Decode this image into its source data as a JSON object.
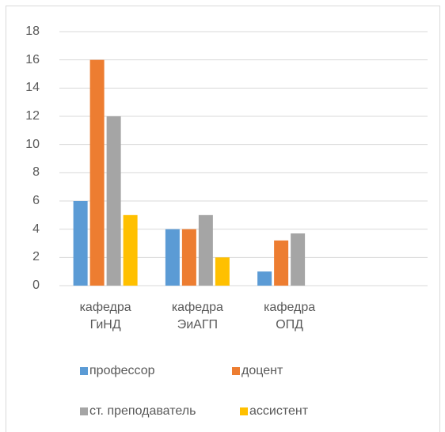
{
  "chart_data": {
    "type": "bar",
    "categories": [
      "кафедра ГиНД",
      "кафедра ЭиАГП",
      "кафедра ОПД",
      null
    ],
    "series": [
      {
        "name": "профессор",
        "color": "#5b9bd5",
        "values": [
          6,
          4,
          1,
          null
        ]
      },
      {
        "name": "доцент",
        "color": "#ed7d31",
        "values": [
          16,
          4,
          3.2,
          null
        ]
      },
      {
        "name": "ст. преподаватель",
        "color": "#a5a5a5",
        "values": [
          12,
          5,
          3.7,
          null
        ]
      },
      {
        "name": "ассистент",
        "color": "#ffc000",
        "values": [
          5,
          2,
          null,
          null
        ]
      }
    ],
    "ylim": [
      0,
      18
    ],
    "yticks": [
      0,
      2,
      4,
      6,
      8,
      10,
      12,
      14,
      16,
      18
    ],
    "grid": true,
    "legend": "bottom"
  }
}
